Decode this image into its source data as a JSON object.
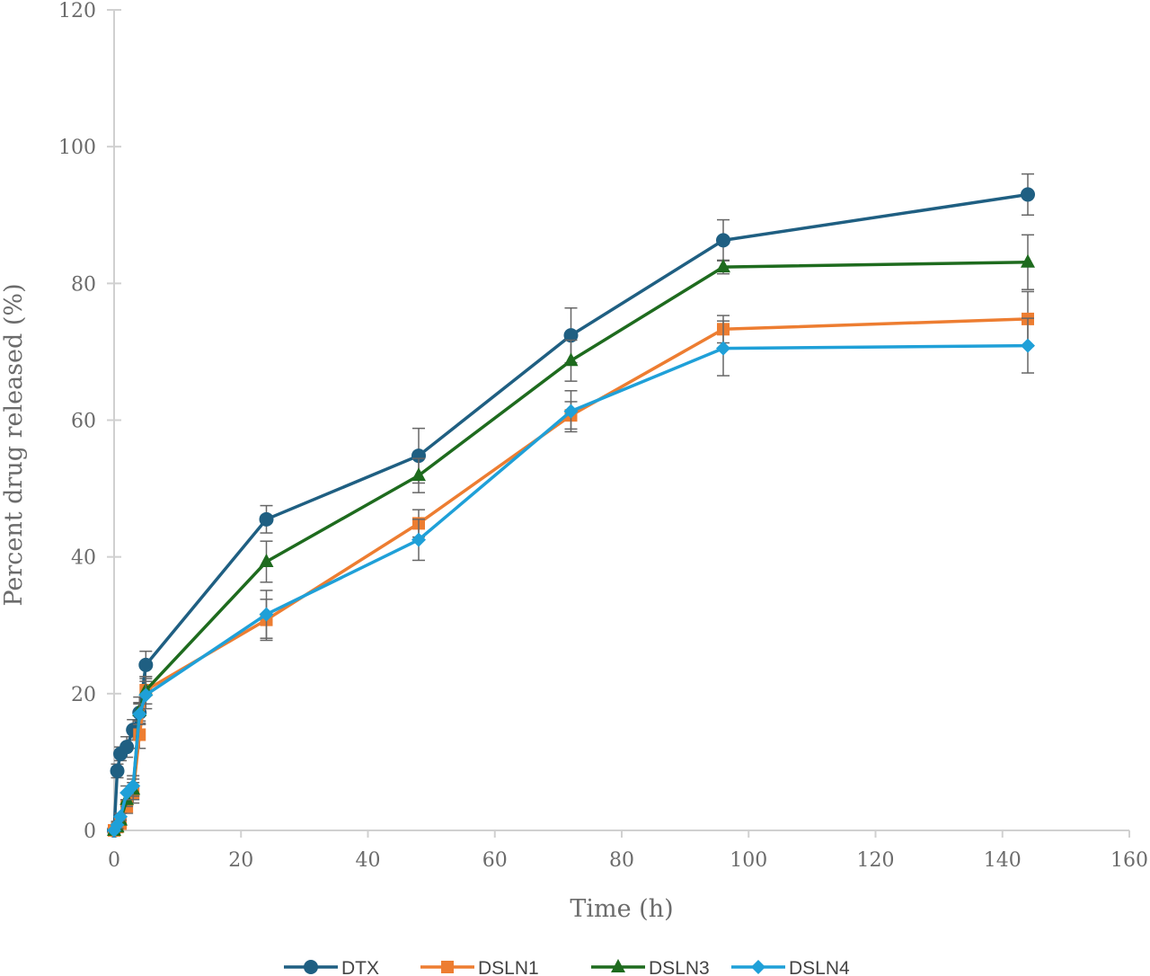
{
  "chart_data": {
    "type": "line",
    "title": "",
    "xlabel": "Time (h)",
    "ylabel": "Percent drug released (%)",
    "xlim": [
      0,
      160
    ],
    "ylim": [
      0,
      120
    ],
    "xticks": [
      0,
      20,
      40,
      60,
      80,
      100,
      120,
      140,
      160
    ],
    "yticks": [
      0,
      20,
      40,
      60,
      80,
      100,
      120
    ],
    "grid": false,
    "legend_position": "bottom",
    "x": [
      0,
      0.5,
      1,
      2,
      3,
      4,
      5,
      24,
      48,
      72,
      96,
      144
    ],
    "series": [
      {
        "name": "DTX",
        "color": "#1f5f82",
        "marker": "circle",
        "values": [
          0,
          8.7,
          11.2,
          12.2,
          14.7,
          17.2,
          24.2,
          45.5,
          54.8,
          72.4,
          86.3,
          93.0
        ],
        "error": [
          0,
          1,
          1,
          1.5,
          1.5,
          1.5,
          2,
          2,
          4,
          4,
          3,
          3
        ]
      },
      {
        "name": "DSLN1",
        "color": "#ed7d31",
        "marker": "square",
        "values": [
          0,
          0.5,
          1.0,
          3.5,
          5.5,
          14.0,
          20.5,
          30.8,
          44.9,
          60.7,
          73.3,
          74.8
        ],
        "error": [
          0,
          0.5,
          0.5,
          1,
          1.5,
          2,
          2,
          3,
          2,
          2,
          2,
          4
        ]
      },
      {
        "name": "DSLN3",
        "color": "#1e6b1e",
        "marker": "triangle",
        "values": [
          0,
          0.5,
          1.5,
          4.5,
          6.0,
          17.5,
          20.5,
          39.3,
          51.9,
          68.7,
          82.4,
          83.1
        ],
        "error": [
          0,
          0.5,
          0.5,
          1,
          1.5,
          2,
          2,
          3,
          2.5,
          3,
          1,
          4
        ]
      },
      {
        "name": "DSLN4",
        "color": "#1fa0d8",
        "marker": "diamond",
        "values": [
          0,
          0.8,
          2.0,
          5.5,
          6.5,
          17.0,
          19.8,
          31.6,
          42.5,
          61.3,
          70.5,
          70.9
        ],
        "error": [
          0,
          0.5,
          0.5,
          1,
          1.5,
          1.5,
          2,
          3.5,
          3,
          3,
          4,
          4
        ]
      }
    ]
  }
}
